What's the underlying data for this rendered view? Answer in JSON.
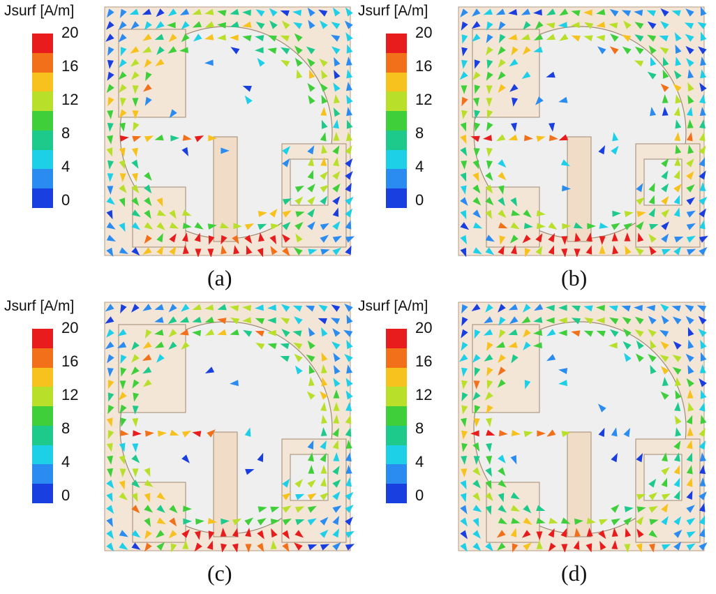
{
  "colorbar": {
    "title": "Jsurf [A/m]",
    "ticks": [
      "20",
      "16",
      "12",
      "8",
      "4",
      "0"
    ],
    "colors": [
      "#e81c1c",
      "#f2701a",
      "#f7c21e",
      "#b8e02a",
      "#3fcf3a",
      "#1ec98c",
      "#1ecfe8",
      "#2a8cf0",
      "#1a3fe0"
    ]
  },
  "panels": [
    {
      "caption": "(a)",
      "seed": 11
    },
    {
      "caption": "(b)",
      "seed": 23
    },
    {
      "caption": "(c)",
      "seed": 37
    },
    {
      "caption": "(d)",
      "seed": 53
    }
  ]
}
